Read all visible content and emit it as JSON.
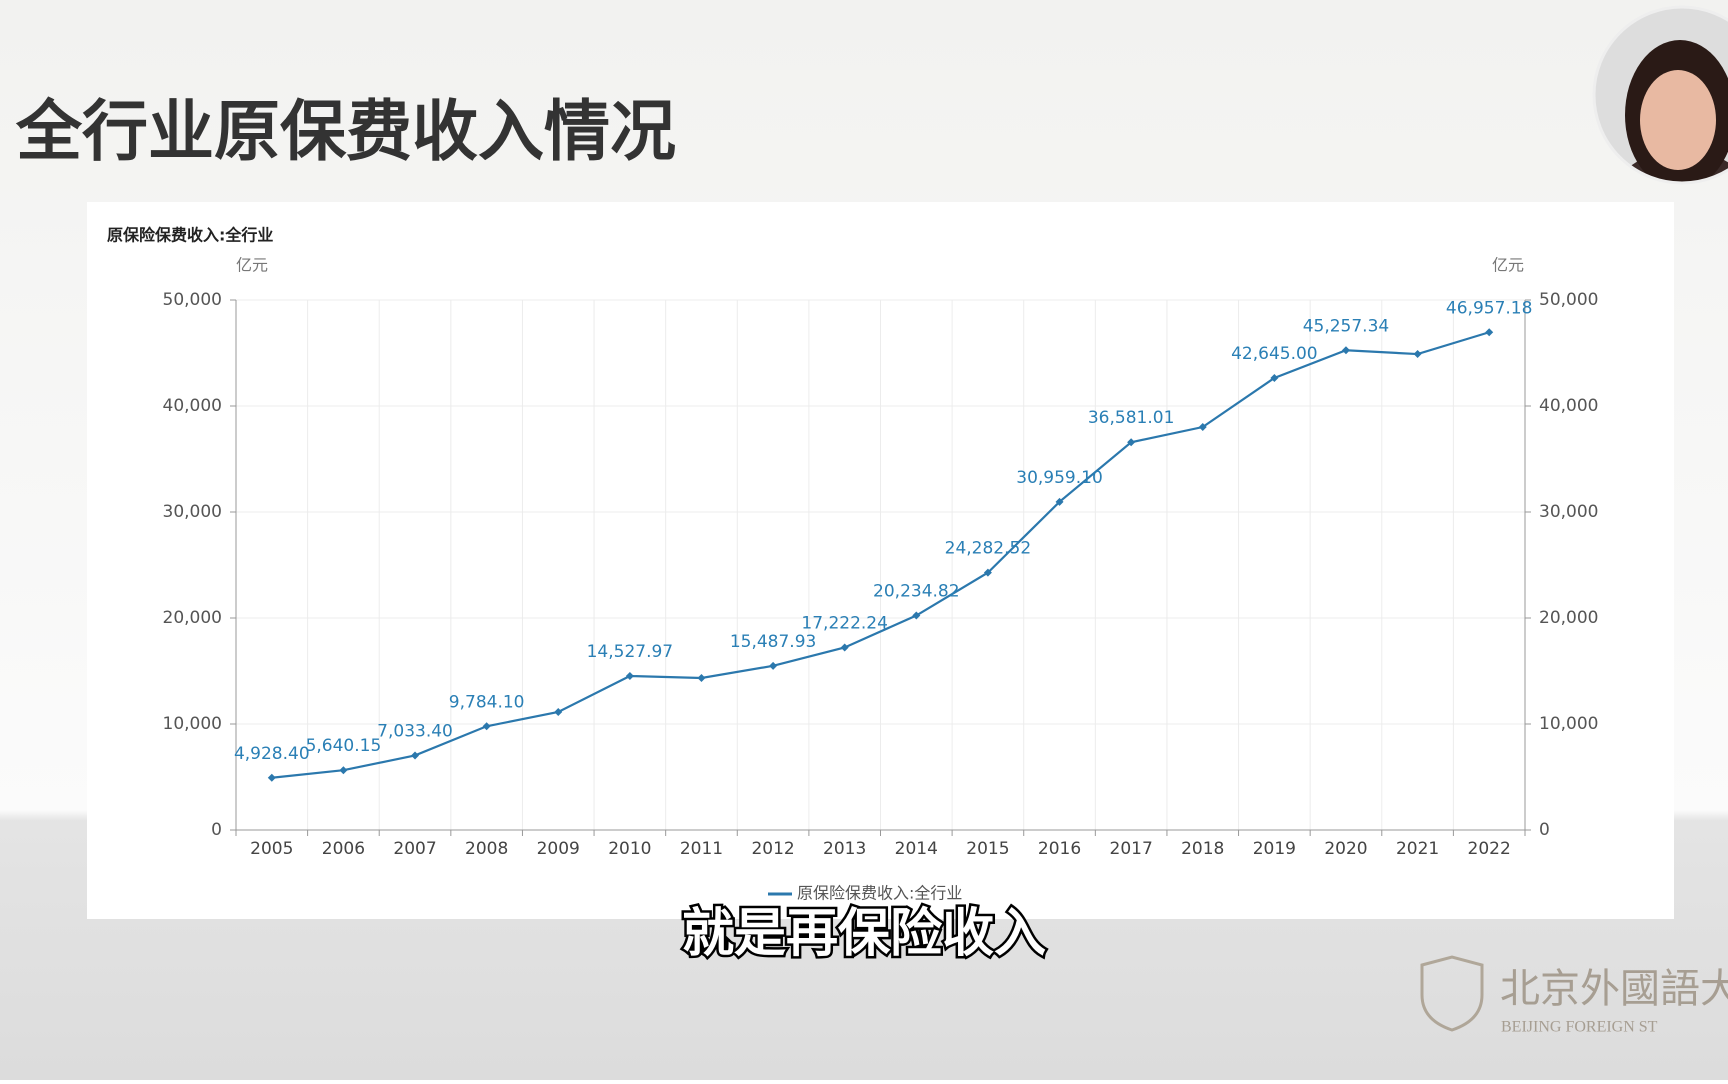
{
  "slide": {
    "title": "全行业原保费收入情况",
    "caption": "就是再保险收入",
    "logo_text": "北京外國語大",
    "logo_subtext": "BEIJING FOREIGN ST"
  },
  "chart_data": {
    "type": "line",
    "title": "原保险保费收入:全行业",
    "y_unit_label": "亿元",
    "y2_unit_label": "亿元",
    "categories": [
      "2005",
      "2006",
      "2007",
      "2008",
      "2009",
      "2010",
      "2011",
      "2012",
      "2013",
      "2014",
      "2015",
      "2016",
      "2017",
      "2018",
      "2019",
      "2020",
      "2021",
      "2022"
    ],
    "series": [
      {
        "name": "原保险保费收入:全行业",
        "color": "#2b78ad",
        "values": [
          4928.4,
          5640.15,
          7033.4,
          9784.1,
          11137.3,
          14527.97,
          14339.25,
          15487.93,
          17222.24,
          20234.82,
          24282.52,
          30959.1,
          36581.01,
          38016.62,
          42645.0,
          45257.34,
          44900.17,
          46957.18
        ],
        "value_labels": [
          "4,928.40",
          "5,640.15",
          "7,033.40",
          "9,784.10",
          null,
          "14,527.97",
          null,
          "15,487.93",
          "17,222.24",
          "20,234.82",
          "24,282.52",
          "30,959.10",
          "36,581.01",
          null,
          "42,645.00",
          "45,257.34",
          null,
          "46,957.18"
        ]
      }
    ],
    "ylim": [
      0,
      50000
    ],
    "yticks": [
      0,
      {
        "value": 10000,
        "label": "10,000"
      },
      {
        "value": 20000,
        "label": "20,000"
      },
      {
        "value": 30000,
        "label": "30,000"
      },
      {
        "value": 40000,
        "label": "40,000"
      },
      {
        "value": 50000,
        "label": "50,000"
      }
    ],
    "y2lim": [
      0,
      50000
    ],
    "y2ticks": [
      0,
      {
        "value": 10000,
        "label": "10,000"
      },
      {
        "value": 20000,
        "label": "20,000"
      },
      {
        "value": 30000,
        "label": "30,000"
      },
      {
        "value": 40000,
        "label": "40,000"
      },
      {
        "value": 50000,
        "label": "50,000"
      }
    ],
    "grid": true,
    "legend": "bottom"
  }
}
